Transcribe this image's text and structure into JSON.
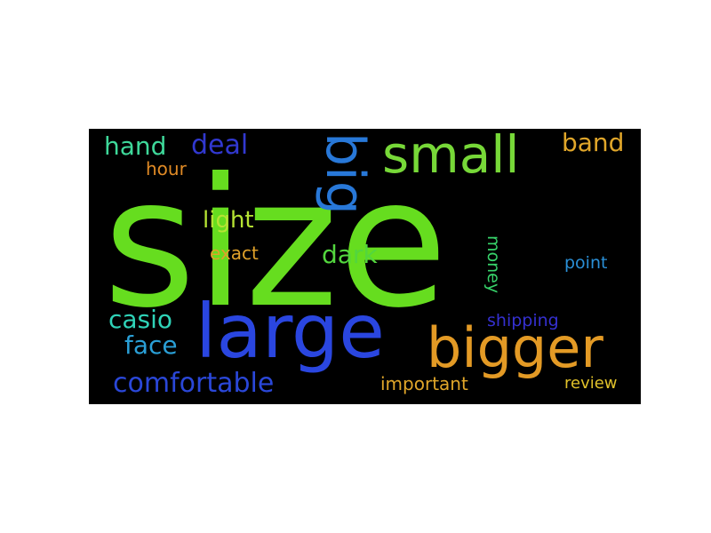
{
  "word_cloud": {
    "background": "#000000",
    "words": [
      {
        "text": "size",
        "color": "#66dd1f"
      },
      {
        "text": "large",
        "color": "#2a46e0"
      },
      {
        "text": "bigger",
        "color": "#e39a25"
      },
      {
        "text": "big",
        "color": "#2878d8"
      },
      {
        "text": "small",
        "color": "#77d838"
      },
      {
        "text": "comfortable",
        "color": "#2a47d8"
      },
      {
        "text": "casio",
        "color": "#2fd3b8"
      },
      {
        "text": "face",
        "color": "#2a9fd6"
      },
      {
        "text": "hand",
        "color": "#3ed89a"
      },
      {
        "text": "deal",
        "color": "#3138d0"
      },
      {
        "text": "light",
        "color": "#b6e333"
      },
      {
        "text": "dark",
        "color": "#53d63e"
      },
      {
        "text": "band",
        "color": "#e0a62a"
      },
      {
        "text": "hour",
        "color": "#e08a25"
      },
      {
        "text": "exact",
        "color": "#e0a12a"
      },
      {
        "text": "point",
        "color": "#2a8fd6"
      },
      {
        "text": "shipping",
        "color": "#3530d0"
      },
      {
        "text": "important",
        "color": "#e0a62a"
      },
      {
        "text": "review",
        "color": "#e0c12a"
      },
      {
        "text": "money",
        "color": "#37d36a"
      }
    ]
  }
}
